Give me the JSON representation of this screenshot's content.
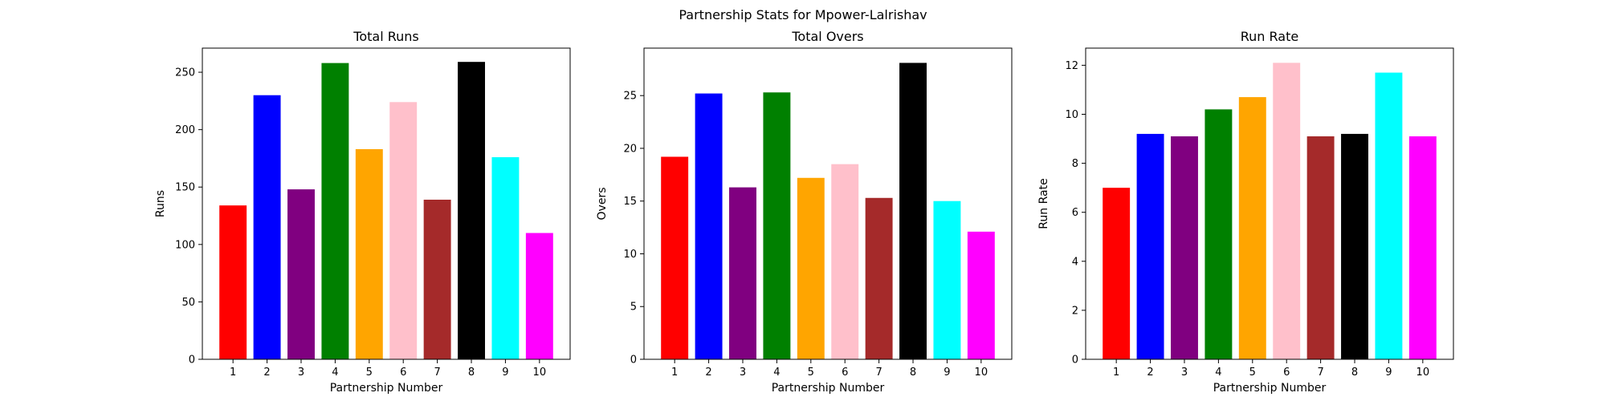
{
  "suptitle": "Partnership Stats for Mpower-Lalrishav",
  "chart_data": [
    {
      "type": "bar",
      "title": "Total Runs",
      "xlabel": "Partnership Number",
      "ylabel": "Runs",
      "categories": [
        "1",
        "2",
        "3",
        "4",
        "5",
        "6",
        "7",
        "8",
        "9",
        "10"
      ],
      "values": [
        134,
        230,
        148,
        258,
        183,
        224,
        139,
        259,
        176,
        110
      ],
      "ylim": [
        0,
        271
      ],
      "yticks": [
        0,
        50,
        100,
        150,
        200,
        250
      ],
      "grid": false
    },
    {
      "type": "bar",
      "title": "Total Overs",
      "xlabel": "Partnership Number",
      "ylabel": "Overs",
      "categories": [
        "1",
        "2",
        "3",
        "4",
        "5",
        "6",
        "7",
        "8",
        "9",
        "10"
      ],
      "values": [
        19.2,
        25.2,
        16.3,
        25.3,
        17.2,
        18.5,
        15.3,
        28.1,
        15.0,
        12.1
      ],
      "ylim": [
        0,
        29.5
      ],
      "yticks": [
        0,
        5,
        10,
        15,
        20,
        25
      ],
      "grid": false
    },
    {
      "type": "bar",
      "title": "Run Rate",
      "xlabel": "Partnership Number",
      "ylabel": "Run Rate",
      "categories": [
        "1",
        "2",
        "3",
        "4",
        "5",
        "6",
        "7",
        "8",
        "9",
        "10"
      ],
      "values": [
        7.0,
        9.2,
        9.1,
        10.2,
        10.7,
        12.1,
        9.1,
        9.2,
        11.7,
        9.1
      ],
      "ylim": [
        0,
        12.7
      ],
      "yticks": [
        0,
        2,
        4,
        6,
        8,
        10,
        12
      ],
      "grid": false
    }
  ],
  "bar_colors": [
    "#ff0000",
    "#0000ff",
    "#800080",
    "#008000",
    "#ffa500",
    "#ffc0cb",
    "#a52a2a",
    "#000000",
    "#00ffff",
    "#ff00ff"
  ]
}
